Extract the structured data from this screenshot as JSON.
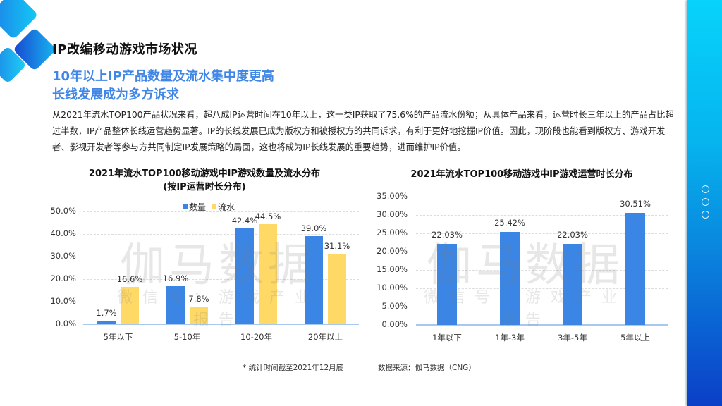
{
  "header": {
    "title": "IP改编移动游戏市场状况",
    "subtitle_line1": "10年以上IP产品数量及流水集中度更高",
    "subtitle_line2": "长线发展成为多方诉求"
  },
  "body": {
    "paragraph": "从2021年流水TOP100产品状况来看，超八成IP运营时间在10年以上，这一类IP获取了75.6%的产品流水份额；从具体产品来看，运营时长三年以上的产品占比超过半数，IP产品整体长线运营趋势显著。IP的长线发展已成为版权方和被授权方的共同诉求，有利于更好地挖掘IP价值。因此，现阶段也能看到版权方、游戏开发者、影视开发者等参与方共同制定IP发展策略的局面，这也将成为IP长线发展的重要趋势，进而维护IP价值。"
  },
  "watermark": {
    "main": "伽马数据",
    "sub": "微信号：游戏产业报告"
  },
  "footer": {
    "note": "* 统计时间截至2021年12月底",
    "source": "数据来源：伽马数据（CNG）"
  },
  "colors": {
    "blue": "#3b86e4",
    "yellow": "#ffd966",
    "title_blue": "#3f86e6"
  },
  "chart_data": [
    {
      "type": "bar",
      "title": "2021年流水TOP100移动游戏中IP游戏数量及流水分布",
      "subtitle": "(按IP运营时长分布)",
      "categories": [
        "5年以下",
        "5-10年",
        "10-20年",
        "20年以上"
      ],
      "series": [
        {
          "name": "数量",
          "color": "#3b86e4",
          "values": [
            1.7,
            16.9,
            42.4,
            39.0
          ],
          "labels": [
            "1.7%",
            "16.9%",
            "42.4%",
            "39.0%"
          ]
        },
        {
          "name": "流水",
          "color": "#ffd966",
          "values": [
            16.6,
            7.8,
            44.5,
            31.1
          ],
          "labels": [
            "16.6%",
            "7.8%",
            "44.5%",
            "31.1%"
          ]
        }
      ],
      "yticks": [
        "0.0%",
        "10.0%",
        "20.0%",
        "30.0%",
        "40.0%",
        "50.0%"
      ],
      "ylim": [
        0,
        50
      ],
      "xlabel": "",
      "ylabel": "",
      "grid": true,
      "legend_position": "top"
    },
    {
      "type": "bar",
      "title": "2021年流水TOP100移动游戏中IP游戏运营时长分布",
      "categories": [
        "1年以下",
        "1年-3年",
        "3年-5年",
        "5年以上"
      ],
      "values": [
        22.03,
        25.42,
        22.03,
        30.51
      ],
      "labels": [
        "22.03%",
        "25.42%",
        "22.03%",
        "30.51%"
      ],
      "color": "#3b86e4",
      "yticks": [
        "0.00%",
        "5.00%",
        "10.00%",
        "15.00%",
        "20.00%",
        "25.00%",
        "30.00%",
        "35.00%"
      ],
      "ylim": [
        0,
        35
      ],
      "xlabel": "",
      "ylabel": "",
      "grid": true
    }
  ]
}
